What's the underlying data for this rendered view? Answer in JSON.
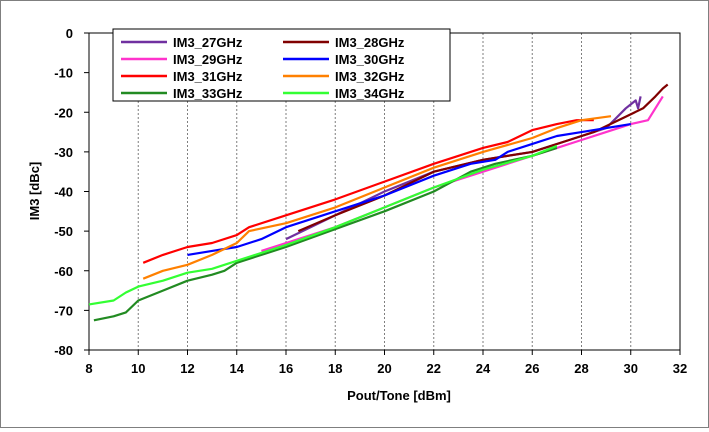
{
  "chart_data": {
    "type": "line",
    "title": "",
    "xlabel": "Pout/Tone [dBm]",
    "ylabel": "IM3 [dBc]",
    "xlim": [
      8,
      32
    ],
    "ylim": [
      -80,
      0
    ],
    "xticks": [
      8,
      10,
      12,
      14,
      16,
      18,
      20,
      22,
      24,
      26,
      28,
      30,
      32
    ],
    "yticks": [
      0,
      -10,
      -20,
      -30,
      -40,
      -50,
      -60,
      -70,
      -80
    ],
    "grid": "vertical dotted",
    "legend_position": "top-left",
    "series": [
      {
        "name": "IM3_27GHz",
        "color": "#7030a0",
        "x": [
          16.0,
          18.0,
          20.0,
          22.0,
          24.0,
          26.0,
          27.5,
          29.0,
          29.8,
          30.2,
          30.3,
          30.4
        ],
        "y": [
          -52,
          -46,
          -40,
          -35,
          -32,
          -30,
          -27,
          -24,
          -19,
          -17,
          -19,
          -16
        ]
      },
      {
        "name": "IM3_28GHz",
        "color": "#800000",
        "x": [
          16.5,
          18.0,
          20.0,
          22.0,
          24.0,
          26.0,
          27.5,
          28.5,
          29.5,
          30.5,
          31.0,
          31.3,
          31.5
        ],
        "y": [
          -50,
          -46,
          -41,
          -35,
          -32,
          -30,
          -27,
          -25,
          -22,
          -19,
          -16,
          -14,
          -13
        ]
      },
      {
        "name": "IM3_29GHz",
        "color": "#ff33cc",
        "x": [
          15.0,
          16.0,
          18.0,
          20.0,
          22.0,
          24.0,
          26.0,
          27.0,
          28.0,
          29.0,
          30.0,
          30.7,
          31.0,
          31.3
        ],
        "y": [
          -55,
          -53,
          -49,
          -44,
          -39,
          -35,
          -31,
          -29,
          -27,
          -25,
          -23,
          -22,
          -19,
          -16
        ]
      },
      {
        "name": "IM3_30GHz",
        "color": "#0000ff",
        "x": [
          12.0,
          13.0,
          14.0,
          15.0,
          16.0,
          18.0,
          20.0,
          22.0,
          23.5,
          24.5,
          25.0,
          26.0,
          27.0,
          28.0,
          29.0,
          30.0
        ],
        "y": [
          -56,
          -55,
          -54,
          -52,
          -49,
          -45,
          -41,
          -36,
          -33,
          -32,
          -30,
          -28,
          -26,
          -25,
          -24,
          -23
        ]
      },
      {
        "name": "IM3_31GHz",
        "color": "#ff0000",
        "x": [
          10.2,
          11.0,
          12.0,
          13.0,
          14.0,
          14.5,
          16.0,
          18.0,
          20.0,
          22.0,
          24.0,
          25.0,
          26.0,
          27.0,
          27.8,
          28.5
        ],
        "y": [
          -58,
          -56,
          -54,
          -53,
          -51,
          -49,
          -46,
          -42,
          -37.5,
          -33,
          -29,
          -27.5,
          -24.5,
          -23,
          -22,
          -22
        ]
      },
      {
        "name": "IM3_32GHz",
        "color": "#ff8000",
        "x": [
          10.2,
          11.0,
          12.0,
          13.0,
          14.0,
          14.5,
          16.0,
          18.0,
          20.0,
          22.0,
          24.0,
          26.0,
          27.0,
          28.0,
          29.2
        ],
        "y": [
          -62,
          -60,
          -58.5,
          -56,
          -53,
          -50,
          -48,
          -44,
          -39,
          -34,
          -30,
          -26.5,
          -24,
          -22,
          -21
        ]
      },
      {
        "name": "IM3_33GHz",
        "color": "#228b22",
        "x": [
          8.2,
          9.0,
          9.5,
          10.0,
          11.0,
          12.0,
          13.0,
          13.5,
          14.0,
          16.0,
          18.0,
          20.0,
          22.0,
          23.5,
          24.5,
          26.0,
          27.0
        ],
        "y": [
          -72.5,
          -71.5,
          -70.5,
          -67.5,
          -65,
          -62.5,
          -61,
          -60,
          -58,
          -54,
          -49.5,
          -45,
          -40,
          -35,
          -33,
          -31,
          -29
        ]
      },
      {
        "name": "IM3_34GHz",
        "color": "#33ff33",
        "x": [
          8.0,
          9.0,
          9.5,
          10.0,
          11.0,
          12.0,
          13.0,
          14.0,
          16.0,
          18.0,
          20.0,
          22.0,
          24.0,
          26.0,
          27.0
        ],
        "y": [
          -68.5,
          -67.5,
          -65.5,
          -64,
          -62.5,
          -60.5,
          -59.5,
          -57.5,
          -53.5,
          -49,
          -44,
          -39,
          -34.5,
          -31,
          -28.5
        ]
      }
    ]
  }
}
